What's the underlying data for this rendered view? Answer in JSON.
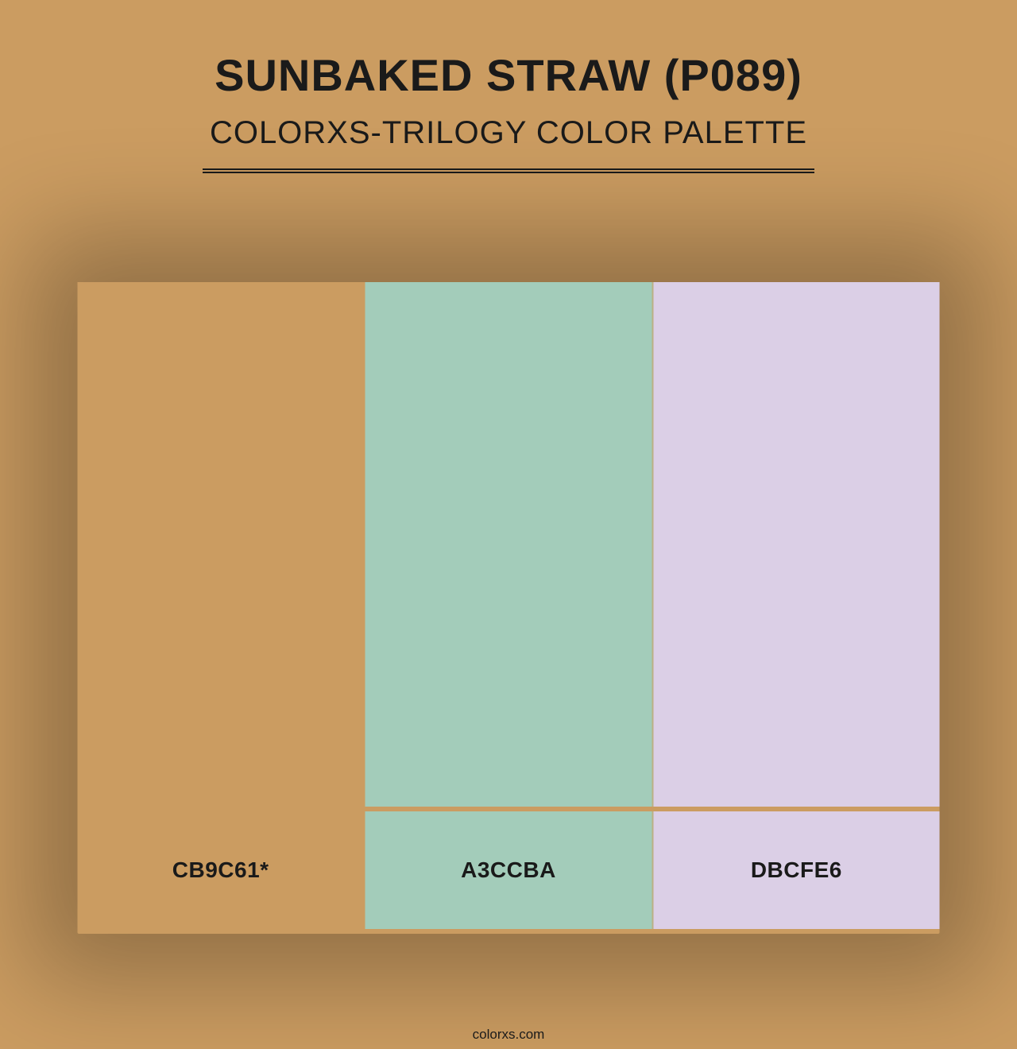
{
  "header": {
    "title": "SUNBAKED STRAW (P089)",
    "subtitle": "COLORXS-TRILOGY COLOR PALETTE"
  },
  "palette": {
    "background_color": "#cb9c61",
    "divider_color": "#cb9c61",
    "swatches": [
      {
        "hex": "#cb9c61",
        "label": "CB9C61*"
      },
      {
        "hex": "#a3ccba",
        "label": "A3CCBA"
      },
      {
        "hex": "#dbcfe6",
        "label": "DBCFE6"
      }
    ],
    "title_color": "#1a1a1a",
    "title_fontsize": 56,
    "subtitle_fontsize": 40,
    "label_fontsize": 28,
    "label_color": "#1a1a1a",
    "swatch_height": 660,
    "label_height": 148,
    "container_width": 1085,
    "divider_width": 770
  },
  "footer": {
    "text": "colorxs.com"
  }
}
